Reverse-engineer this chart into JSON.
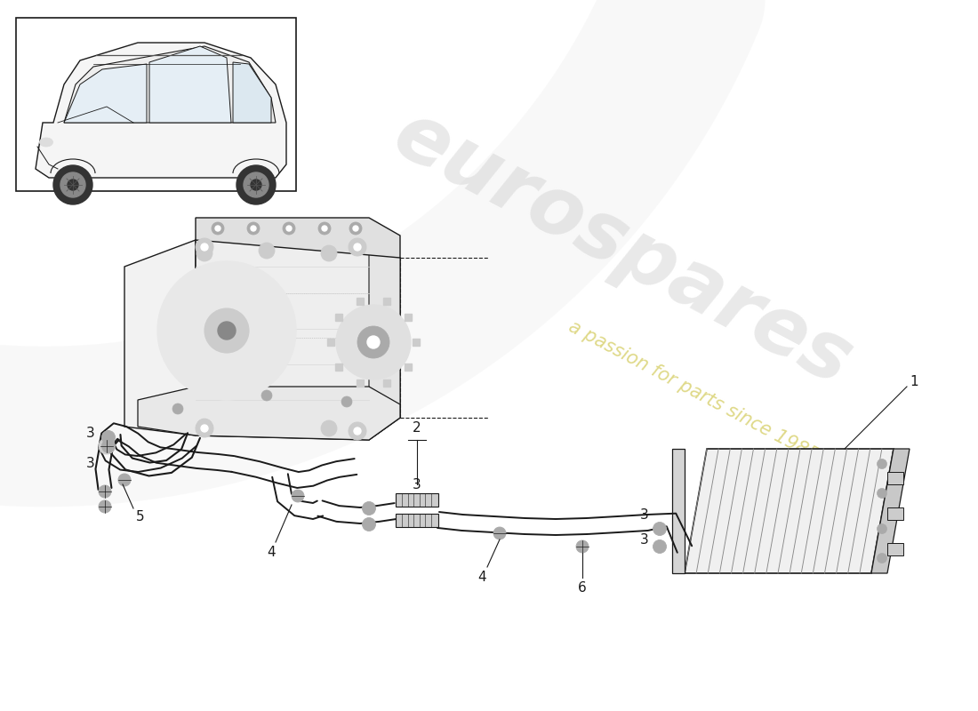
{
  "bg": "#ffffff",
  "lc": "#1a1a1a",
  "gray1": "#e8e8e8",
  "gray2": "#cccccc",
  "gray3": "#aaaaaa",
  "gray4": "#888888",
  "watermark_color": "#c8c8c8",
  "watermark_sub_color": "#d4cc60",
  "swoosh_color": "#d0d0d0",
  "fig_w": 11.0,
  "fig_h": 8.0,
  "xlim": [
    0,
    11
  ],
  "ylim": [
    0,
    8
  ]
}
